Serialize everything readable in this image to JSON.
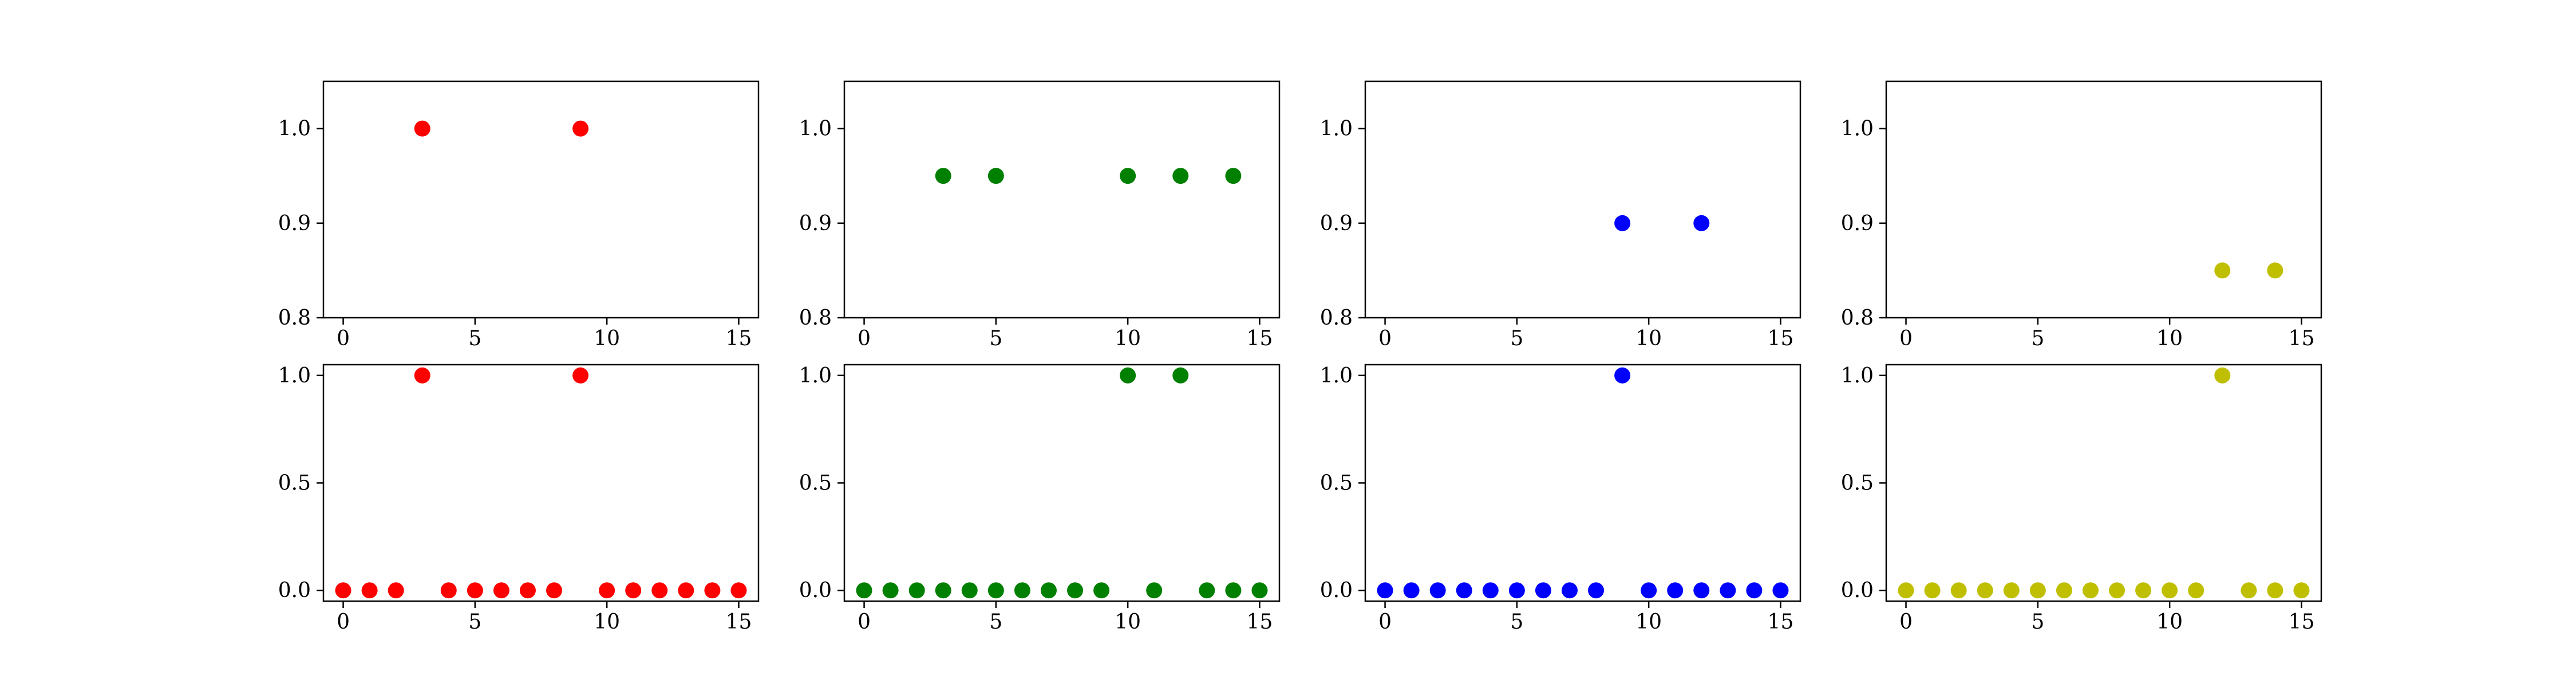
{
  "chart_data": [
    {
      "type": "scatter",
      "title": "",
      "xlabel": "",
      "ylabel": "",
      "color": "#ff0000",
      "xlim": [
        -0.75,
        15.75
      ],
      "ylim": [
        0.8,
        1.05
      ],
      "xticks": [
        0,
        5,
        10,
        15
      ],
      "yticks": [
        0.8,
        0.9,
        1.0
      ],
      "xtick_labels": [
        "0",
        "5",
        "10",
        "15"
      ],
      "ytick_labels": [
        "0.8",
        "0.9",
        "1.0"
      ],
      "grid": false,
      "points": [
        {
          "x": 3,
          "y": 1.0
        },
        {
          "x": 9,
          "y": 1.0
        }
      ]
    },
    {
      "type": "scatter",
      "title": "",
      "xlabel": "",
      "ylabel": "",
      "color": "#008000",
      "xlim": [
        -0.75,
        15.75
      ],
      "ylim": [
        0.8,
        1.05
      ],
      "xticks": [
        0,
        5,
        10,
        15
      ],
      "yticks": [
        0.8,
        0.9,
        1.0
      ],
      "xtick_labels": [
        "0",
        "5",
        "10",
        "15"
      ],
      "ytick_labels": [
        "0.8",
        "0.9",
        "1.0"
      ],
      "grid": false,
      "points": [
        {
          "x": 3,
          "y": 0.95
        },
        {
          "x": 5,
          "y": 0.95
        },
        {
          "x": 10,
          "y": 0.95
        },
        {
          "x": 12,
          "y": 0.95
        },
        {
          "x": 14,
          "y": 0.95
        }
      ]
    },
    {
      "type": "scatter",
      "title": "",
      "xlabel": "",
      "ylabel": "",
      "color": "#0000ff",
      "xlim": [
        -0.75,
        15.75
      ],
      "ylim": [
        0.8,
        1.05
      ],
      "xticks": [
        0,
        5,
        10,
        15
      ],
      "yticks": [
        0.8,
        0.9,
        1.0
      ],
      "xtick_labels": [
        "0",
        "5",
        "10",
        "15"
      ],
      "ytick_labels": [
        "0.8",
        "0.9",
        "1.0"
      ],
      "grid": false,
      "points": [
        {
          "x": 9,
          "y": 0.9
        },
        {
          "x": 12,
          "y": 0.9
        }
      ]
    },
    {
      "type": "scatter",
      "title": "",
      "xlabel": "",
      "ylabel": "",
      "color": "#bfbf00",
      "xlim": [
        -0.75,
        15.75
      ],
      "ylim": [
        0.8,
        1.05
      ],
      "xticks": [
        0,
        5,
        10,
        15
      ],
      "yticks": [
        0.8,
        0.9,
        1.0
      ],
      "xtick_labels": [
        "0",
        "5",
        "10",
        "15"
      ],
      "ytick_labels": [
        "0.8",
        "0.9",
        "1.0"
      ],
      "grid": false,
      "points": [
        {
          "x": 12,
          "y": 0.85
        },
        {
          "x": 14,
          "y": 0.85
        }
      ]
    },
    {
      "type": "scatter",
      "title": "",
      "xlabel": "",
      "ylabel": "",
      "color": "#ff0000",
      "xlim": [
        -0.75,
        15.75
      ],
      "ylim": [
        -0.05,
        1.05
      ],
      "xticks": [
        0,
        5,
        10,
        15
      ],
      "yticks": [
        0.0,
        0.5,
        1.0
      ],
      "xtick_labels": [
        "0",
        "5",
        "10",
        "15"
      ],
      "ytick_labels": [
        "0.0",
        "0.5",
        "1.0"
      ],
      "grid": false,
      "points": [
        {
          "x": 0,
          "y": 0
        },
        {
          "x": 1,
          "y": 0
        },
        {
          "x": 2,
          "y": 0
        },
        {
          "x": 3,
          "y": 1
        },
        {
          "x": 4,
          "y": 0
        },
        {
          "x": 5,
          "y": 0
        },
        {
          "x": 6,
          "y": 0
        },
        {
          "x": 7,
          "y": 0
        },
        {
          "x": 8,
          "y": 0
        },
        {
          "x": 9,
          "y": 1
        },
        {
          "x": 10,
          "y": 0
        },
        {
          "x": 11,
          "y": 0
        },
        {
          "x": 12,
          "y": 0
        },
        {
          "x": 13,
          "y": 0
        },
        {
          "x": 14,
          "y": 0
        },
        {
          "x": 15,
          "y": 0
        }
      ]
    },
    {
      "type": "scatter",
      "title": "",
      "xlabel": "",
      "ylabel": "",
      "color": "#008000",
      "xlim": [
        -0.75,
        15.75
      ],
      "ylim": [
        -0.05,
        1.05
      ],
      "xticks": [
        0,
        5,
        10,
        15
      ],
      "yticks": [
        0.0,
        0.5,
        1.0
      ],
      "xtick_labels": [
        "0",
        "5",
        "10",
        "15"
      ],
      "ytick_labels": [
        "0.0",
        "0.5",
        "1.0"
      ],
      "grid": false,
      "points": [
        {
          "x": 0,
          "y": 0
        },
        {
          "x": 1,
          "y": 0
        },
        {
          "x": 2,
          "y": 0
        },
        {
          "x": 3,
          "y": 0
        },
        {
          "x": 4,
          "y": 0
        },
        {
          "x": 5,
          "y": 0
        },
        {
          "x": 6,
          "y": 0
        },
        {
          "x": 7,
          "y": 0
        },
        {
          "x": 8,
          "y": 0
        },
        {
          "x": 9,
          "y": 0
        },
        {
          "x": 10,
          "y": 1
        },
        {
          "x": 11,
          "y": 0
        },
        {
          "x": 12,
          "y": 1
        },
        {
          "x": 13,
          "y": 0
        },
        {
          "x": 14,
          "y": 0
        },
        {
          "x": 15,
          "y": 0
        }
      ]
    },
    {
      "type": "scatter",
      "title": "",
      "xlabel": "",
      "ylabel": "",
      "color": "#0000ff",
      "xlim": [
        -0.75,
        15.75
      ],
      "ylim": [
        -0.05,
        1.05
      ],
      "xticks": [
        0,
        5,
        10,
        15
      ],
      "yticks": [
        0.0,
        0.5,
        1.0
      ],
      "xtick_labels": [
        "0",
        "5",
        "10",
        "15"
      ],
      "ytick_labels": [
        "0.0",
        "0.5",
        "1.0"
      ],
      "grid": false,
      "points": [
        {
          "x": 0,
          "y": 0
        },
        {
          "x": 1,
          "y": 0
        },
        {
          "x": 2,
          "y": 0
        },
        {
          "x": 3,
          "y": 0
        },
        {
          "x": 4,
          "y": 0
        },
        {
          "x": 5,
          "y": 0
        },
        {
          "x": 6,
          "y": 0
        },
        {
          "x": 7,
          "y": 0
        },
        {
          "x": 8,
          "y": 0
        },
        {
          "x": 9,
          "y": 1
        },
        {
          "x": 10,
          "y": 0
        },
        {
          "x": 11,
          "y": 0
        },
        {
          "x": 12,
          "y": 0
        },
        {
          "x": 13,
          "y": 0
        },
        {
          "x": 14,
          "y": 0
        },
        {
          "x": 15,
          "y": 0
        }
      ]
    },
    {
      "type": "scatter",
      "title": "",
      "xlabel": "",
      "ylabel": "",
      "color": "#bfbf00",
      "xlim": [
        -0.75,
        15.75
      ],
      "ylim": [
        -0.05,
        1.05
      ],
      "xticks": [
        0,
        5,
        10,
        15
      ],
      "yticks": [
        0.0,
        0.5,
        1.0
      ],
      "xtick_labels": [
        "0",
        "5",
        "10",
        "15"
      ],
      "ytick_labels": [
        "0.0",
        "0.5",
        "1.0"
      ],
      "grid": false,
      "points": [
        {
          "x": 0,
          "y": 0
        },
        {
          "x": 1,
          "y": 0
        },
        {
          "x": 2,
          "y": 0
        },
        {
          "x": 3,
          "y": 0
        },
        {
          "x": 4,
          "y": 0
        },
        {
          "x": 5,
          "y": 0
        },
        {
          "x": 6,
          "y": 0
        },
        {
          "x": 7,
          "y": 0
        },
        {
          "x": 8,
          "y": 0
        },
        {
          "x": 9,
          "y": 0
        },
        {
          "x": 10,
          "y": 0
        },
        {
          "x": 11,
          "y": 0
        },
        {
          "x": 12,
          "y": 1
        },
        {
          "x": 13,
          "y": 0
        },
        {
          "x": 14,
          "y": 0
        },
        {
          "x": 15,
          "y": 0
        }
      ]
    }
  ]
}
